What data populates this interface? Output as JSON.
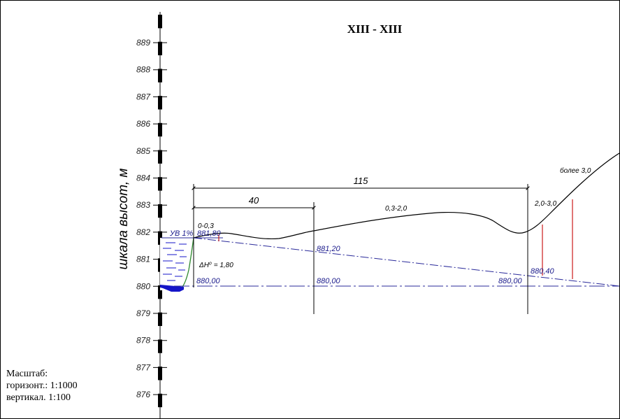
{
  "title": "XIII - XIII",
  "axis_label": "шкала высот, м",
  "scale_note": {
    "heading": "Масштаб:",
    "horizontal": "горизонт.: 1:1000",
    "vertical": "вертикал. 1:100"
  },
  "elevation_ticks": [
    "889",
    "888",
    "887",
    "886",
    "885",
    "884",
    "883",
    "882",
    "881",
    "880",
    "879",
    "878",
    "877",
    "876"
  ],
  "dimensions": {
    "total": "115",
    "partial": "40"
  },
  "depth_zones": {
    "zone_1": "0-0,3",
    "zone_2": "0,3-2,0",
    "zone_3": "2,0-3,0",
    "zone_4": "более 3,0"
  },
  "water_level": {
    "label": "УВ 1%",
    "value": "881,80"
  },
  "depth_delta": "ΔH⁰ = 1,80",
  "levels": {
    "sloped_mid": "881,20",
    "sloped_right": "880,40",
    "base_left": "880,00",
    "base_mid": "880,00",
    "base_right": "880,00"
  },
  "colors": {
    "line": "#000000",
    "level_line": "#2a2a9a",
    "water": "#1515c8",
    "depth_marker": "#cc1a1a",
    "bank": "#2f8a2f"
  }
}
